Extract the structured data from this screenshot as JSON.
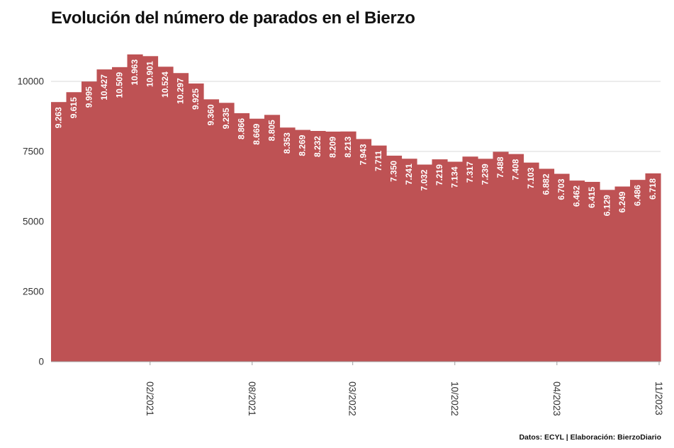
{
  "title": "Evolución del número de parados en el Bierzo",
  "source": "Datos: ECYL | Elaboración: BierzoDiario",
  "colors": {
    "bar": "#be5254",
    "label": "#ffffff",
    "grid": "#d9d9d9",
    "text": "#333333"
  },
  "chart_data": {
    "type": "bar",
    "title": "Evolución del número de parados en el Bierzo",
    "values": [
      9263,
      9615,
      9995,
      10427,
      10509,
      10963,
      10901,
      10524,
      10297,
      9925,
      9360,
      9235,
      8866,
      8669,
      8805,
      8353,
      8269,
      8232,
      8209,
      8213,
      7943,
      7711,
      7350,
      7241,
      7032,
      7219,
      7134,
      7317,
      7239,
      7488,
      7408,
      7103,
      6882,
      6703,
      6462,
      6415,
      6129,
      6249,
      6486,
      6718
    ],
    "value_labels": [
      "9.263",
      "9.615",
      "9.995",
      "10.427",
      "10.509",
      "10.963",
      "10.901",
      "10.524",
      "10.297",
      "9.925",
      "9.360",
      "9.235",
      "8.866",
      "8.669",
      "8.805",
      "8.353",
      "8.269",
      "8.232",
      "8.209",
      "8.213",
      "7.943",
      "7.711",
      "7.350",
      "7.241",
      "7.032",
      "7.219",
      "7.134",
      "7.317",
      "7.239",
      "7.488",
      "7.408",
      "7.103",
      "6.882",
      "6.703",
      "6.462",
      "6.415",
      "6.129",
      "6.249",
      "6.486",
      "6.718"
    ],
    "x_ticks": [
      {
        "index": 6.5,
        "label": "02/2021"
      },
      {
        "index": 13.2,
        "label": "08/2021"
      },
      {
        "index": 19.8,
        "label": "03/2022"
      },
      {
        "index": 26.5,
        "label": "10/2022"
      },
      {
        "index": 33.2,
        "label": "04/2023"
      },
      {
        "index": 40,
        "label": "11/2023"
      }
    ],
    "y_ticks": [
      {
        "value": 0,
        "label": "0"
      },
      {
        "value": 2500,
        "label": "2500"
      },
      {
        "value": 5000,
        "label": "5000"
      },
      {
        "value": 7500,
        "label": "7500"
      },
      {
        "value": 10000,
        "label": "10000"
      }
    ],
    "ylim": [
      0,
      11500
    ],
    "grid": true,
    "legend": "none"
  }
}
